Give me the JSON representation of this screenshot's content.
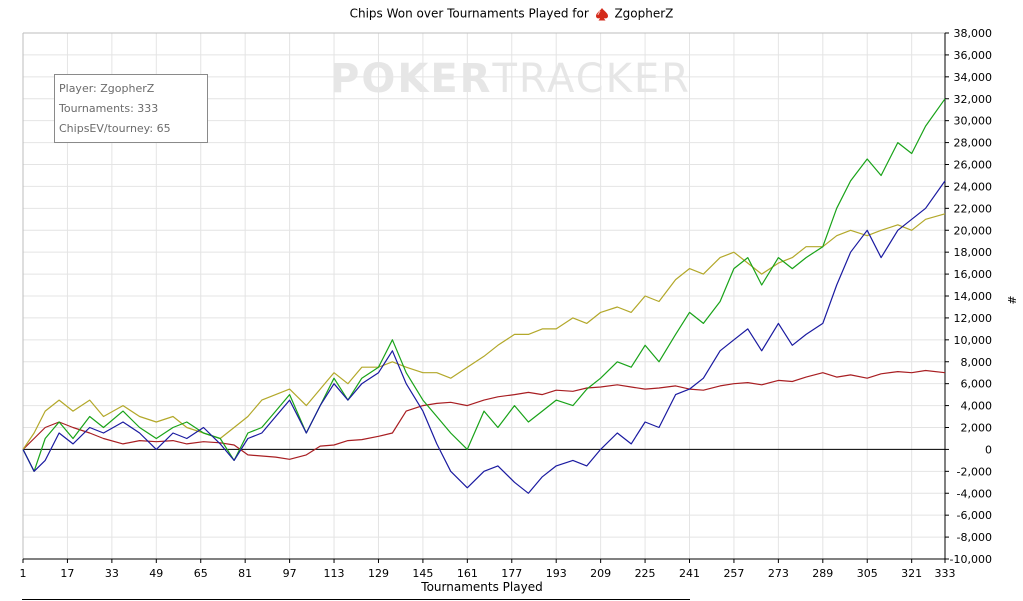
{
  "header": {
    "title_prefix": "Chips Won over Tournaments Played for",
    "player_name": "ZgopherZ"
  },
  "watermark": {
    "bold": "POKER",
    "light": "TRACKER"
  },
  "info_box": {
    "player": "Player: ZgopherZ",
    "tournaments": "Tournaments: 333",
    "chipsev": "ChipsEV/tourney: 65"
  },
  "colors": {
    "green": "#19a319",
    "blue": "#1a1aa0",
    "olive": "#b3a82a",
    "red": "#a81e22",
    "grid": "#e4e4e4",
    "axis": "#000000"
  },
  "chart_data": {
    "type": "line",
    "title": "Chips Won over Tournaments Played for ZgopherZ",
    "xlabel": "Tournaments Played",
    "ylabel": "#",
    "xlim": [
      1,
      333
    ],
    "ylim": [
      -10000,
      38000
    ],
    "x_ticks": [
      "1",
      "17",
      "33",
      "49",
      "65",
      "81",
      "97",
      "113",
      "129",
      "145",
      "161",
      "177",
      "193",
      "209",
      "225",
      "241",
      "257",
      "273",
      "289",
      "305",
      "321",
      "333"
    ],
    "y_ticks": [
      "-10,000",
      "-8,000",
      "-6,000",
      "-4,000",
      "-2,000",
      "0",
      "2,000",
      "4,000",
      "6,000",
      "8,000",
      "10,000",
      "12,000",
      "14,000",
      "16,000",
      "18,000",
      "20,000",
      "22,000",
      "24,000",
      "26,000",
      "28,000",
      "30,000",
      "32,000",
      "34,000",
      "36,000",
      "38,000"
    ],
    "grid": true,
    "legend": "none",
    "series": [
      {
        "color": "#19a319",
        "x": [
          1,
          5,
          9,
          14,
          19,
          25,
          30,
          37,
          43,
          49,
          55,
          60,
          66,
          72,
          77,
          82,
          87,
          92,
          97,
          103,
          108,
          113,
          118,
          123,
          129,
          134,
          139,
          145,
          150,
          155,
          161,
          167,
          172,
          178,
          183,
          188,
          193,
          199,
          204,
          209,
          215,
          220,
          225,
          230,
          236,
          241,
          246,
          252,
          257,
          262,
          267,
          273,
          278,
          283,
          289,
          294,
          299,
          305,
          310,
          316,
          321,
          326,
          333
        ],
        "y": [
          0,
          -2000,
          1000,
          2500,
          1000,
          3000,
          2000,
          3500,
          2000,
          1000,
          2000,
          2500,
          1500,
          1000,
          -1000,
          1500,
          2000,
          3500,
          5000,
          1500,
          4000,
          6500,
          4500,
          6500,
          7500,
          10000,
          7000,
          4500,
          3000,
          1500,
          0,
          3500,
          2000,
          4000,
          2500,
          3500,
          4500,
          4000,
          5500,
          6500,
          8000,
          7500,
          9500,
          8000,
          10500,
          12500,
          11500,
          13500,
          16500,
          17500,
          15000,
          17500,
          16500,
          17500,
          18500,
          22000,
          24500,
          26500,
          25000,
          28000,
          27000,
          29500,
          32000
        ]
      },
      {
        "color": "#1a1aa0",
        "x": [
          1,
          5,
          9,
          14,
          19,
          25,
          30,
          37,
          43,
          49,
          55,
          60,
          66,
          72,
          77,
          82,
          87,
          92,
          97,
          103,
          108,
          113,
          118,
          123,
          129,
          134,
          139,
          145,
          150,
          155,
          161,
          167,
          172,
          178,
          183,
          188,
          193,
          199,
          204,
          209,
          215,
          220,
          225,
          230,
          236,
          241,
          246,
          252,
          257,
          262,
          267,
          273,
          278,
          283,
          289,
          294,
          299,
          305,
          310,
          316,
          321,
          326,
          333
        ],
        "y": [
          0,
          -2000,
          -1000,
          1500,
          500,
          2000,
          1500,
          2500,
          1500,
          0,
          1500,
          1000,
          2000,
          500,
          -1000,
          1000,
          1500,
          3000,
          4500,
          1500,
          4000,
          6000,
          4500,
          6000,
          7000,
          9000,
          6000,
          3500,
          500,
          -2000,
          -3500,
          -2000,
          -1500,
          -3000,
          -4000,
          -2500,
          -1500,
          -1000,
          -1500,
          0,
          1500,
          500,
          2500,
          2000,
          5000,
          5500,
          6500,
          9000,
          10000,
          11000,
          9000,
          11500,
          9500,
          10500,
          11500,
          15000,
          18000,
          20000,
          17500,
          20000,
          21000,
          22000,
          24500
        ]
      },
      {
        "color": "#b3a82a",
        "x": [
          1,
          5,
          9,
          14,
          19,
          25,
          30,
          37,
          43,
          49,
          55,
          60,
          66,
          72,
          77,
          82,
          87,
          92,
          97,
          103,
          108,
          113,
          118,
          123,
          129,
          134,
          139,
          145,
          150,
          155,
          161,
          167,
          172,
          178,
          183,
          188,
          193,
          199,
          204,
          209,
          215,
          220,
          225,
          230,
          236,
          241,
          246,
          252,
          257,
          262,
          267,
          273,
          278,
          283,
          289,
          294,
          299,
          305,
          310,
          316,
          321,
          326,
          333
        ],
        "y": [
          0,
          1500,
          3500,
          4500,
          3500,
          4500,
          3000,
          4000,
          3000,
          2500,
          3000,
          2000,
          1500,
          1000,
          2000,
          3000,
          4500,
          5000,
          5500,
          4000,
          5500,
          7000,
          6000,
          7500,
          7500,
          8000,
          7500,
          7000,
          7000,
          6500,
          7500,
          8500,
          9500,
          10500,
          10500,
          11000,
          11000,
          12000,
          11500,
          12500,
          13000,
          12500,
          14000,
          13500,
          15500,
          16500,
          16000,
          17500,
          18000,
          17000,
          16000,
          17000,
          17500,
          18500,
          18500,
          19500,
          20000,
          19500,
          20000,
          20500,
          20000,
          21000,
          21500
        ]
      },
      {
        "color": "#a81e22",
        "x": [
          1,
          5,
          9,
          14,
          19,
          25,
          30,
          37,
          43,
          49,
          55,
          60,
          66,
          72,
          77,
          82,
          87,
          92,
          97,
          103,
          108,
          113,
          118,
          123,
          129,
          134,
          139,
          145,
          150,
          155,
          161,
          167,
          172,
          178,
          183,
          188,
          193,
          199,
          204,
          209,
          215,
          220,
          225,
          230,
          236,
          241,
          246,
          252,
          257,
          262,
          267,
          273,
          278,
          283,
          289,
          294,
          299,
          305,
          310,
          316,
          321,
          326,
          333
        ],
        "y": [
          0,
          1000,
          2000,
          2500,
          2000,
          1500,
          1000,
          500,
          800,
          700,
          800,
          500,
          700,
          600,
          400,
          -500,
          -600,
          -700,
          -900,
          -500,
          300,
          400,
          800,
          900,
          1200,
          1500,
          3500,
          4000,
          4200,
          4300,
          4000,
          4500,
          4800,
          5000,
          5200,
          5000,
          5400,
          5300,
          5600,
          5700,
          5900,
          5700,
          5500,
          5600,
          5800,
          5500,
          5400,
          5800,
          6000,
          6100,
          5900,
          6300,
          6200,
          6600,
          7000,
          6600,
          6800,
          6500,
          6900,
          7100,
          7000,
          7200,
          7000
        ]
      }
    ]
  }
}
